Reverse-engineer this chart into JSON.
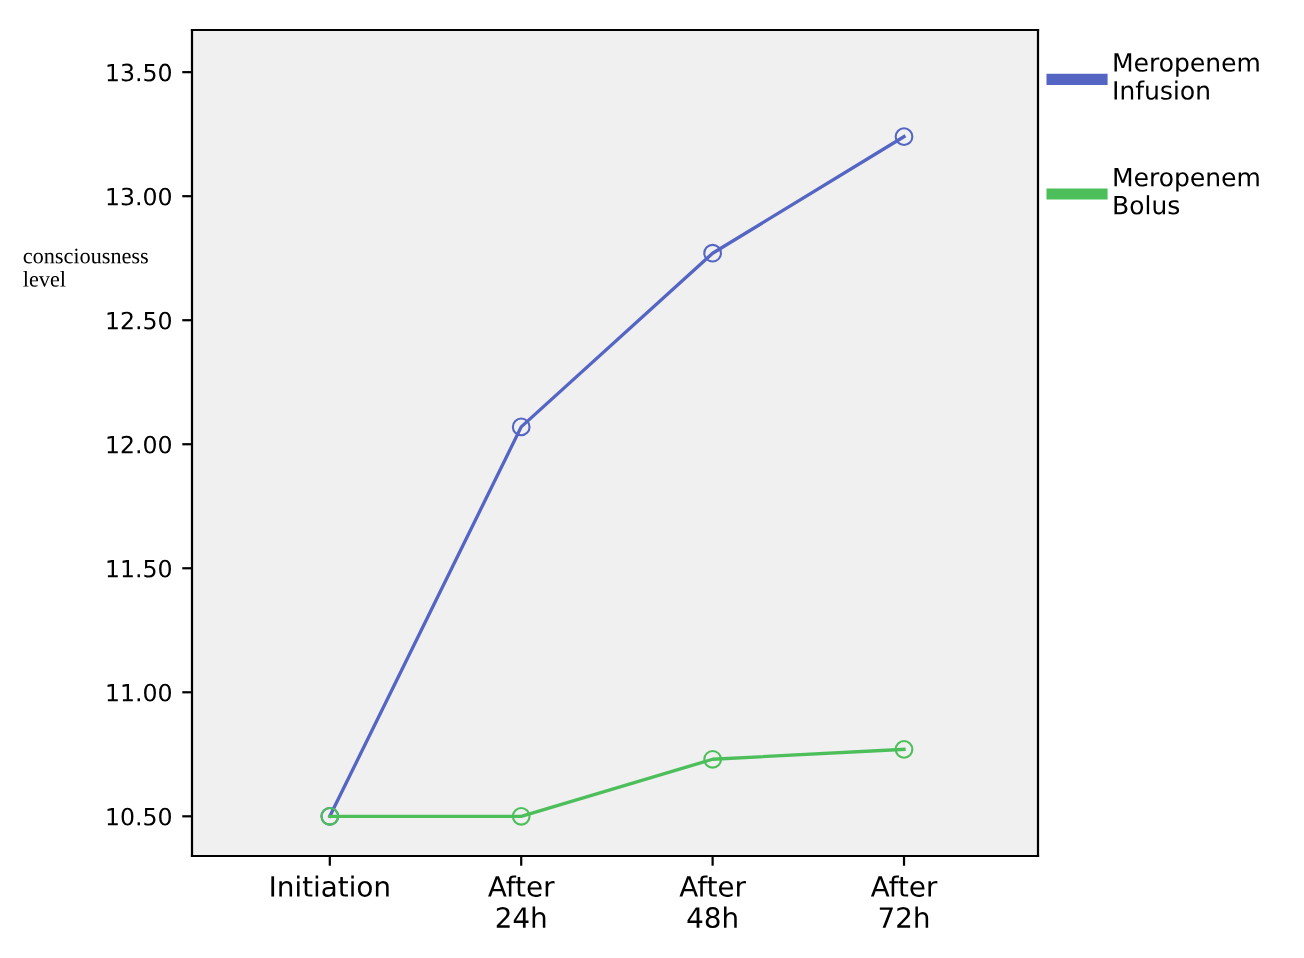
{
  "chart_data": {
    "type": "line",
    "ylabel": "consciousness\nlevel",
    "categories": [
      "Initiation",
      "After\n24h",
      "After\n48h",
      "After\n72h"
    ],
    "series": [
      {
        "name": "Meropenem\nInfusion",
        "color": "#5565c4",
        "values": [
          10.5,
          12.07,
          12.77,
          13.24
        ]
      },
      {
        "name": "Meropenem\nBolus",
        "color": "#4cbf5a",
        "values": [
          10.5,
          10.5,
          10.73,
          10.77
        ]
      }
    ],
    "ylim": [
      10.34,
      13.67
    ],
    "yticks": [
      {
        "value": 10.5,
        "label": "10.50"
      },
      {
        "value": 11.0,
        "label": "11.00"
      },
      {
        "value": 11.5,
        "label": "11.50"
      },
      {
        "value": 12.0,
        "label": "12.00"
      },
      {
        "value": 12.5,
        "label": "12.50"
      },
      {
        "value": 13.0,
        "label": "13.00"
      },
      {
        "value": 13.5,
        "label": "13.50"
      }
    ],
    "marker": "circle",
    "line_style": "solid",
    "grid": false,
    "legend": "top right"
  }
}
